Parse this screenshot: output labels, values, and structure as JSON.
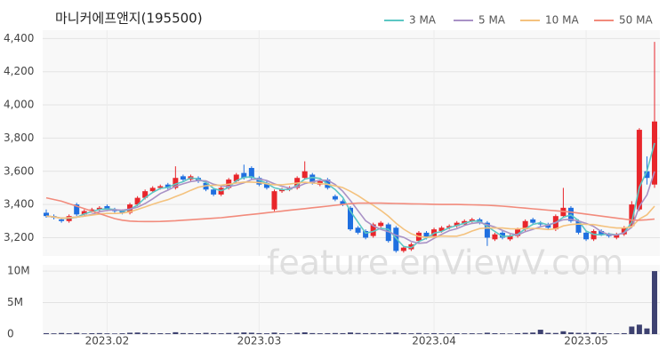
{
  "chart_data": {
    "type": "candlestick",
    "title": "마니커에프앤지(195500)",
    "watermark": "feature.enViewV.com",
    "categories": [
      null,
      null,
      null,
      null,
      null,
      null,
      null,
      null,
      "2023.02",
      null,
      null,
      null,
      null,
      null,
      null,
      null,
      null,
      null,
      null,
      null,
      null,
      null,
      null,
      null,
      null,
      null,
      null,
      null,
      "2023.03",
      null,
      null,
      null,
      null,
      null,
      null,
      null,
      null,
      null,
      null,
      null,
      null,
      null,
      null,
      null,
      null,
      null,
      null,
      null,
      null,
      null,
      null,
      "2023.04",
      null,
      null,
      null,
      null,
      null,
      null,
      null,
      null,
      null,
      null,
      null,
      null,
      null,
      null,
      null,
      null,
      null,
      null,
      null,
      "2023.05",
      null,
      null,
      null,
      null,
      null,
      null,
      null,
      null,
      null
    ],
    "open": [
      3350,
      3330,
      3310,
      3300,
      3400,
      3340,
      3360,
      3370,
      3390,
      3370,
      3360,
      3350,
      3400,
      3440,
      3480,
      3500,
      3520,
      3500,
      3570,
      3550,
      3560,
      3530,
      3490,
      3460,
      3500,
      3540,
      3590,
      3620,
      3560,
      3530,
      3370,
      3480,
      3490,
      3500,
      3560,
      3580,
      3520,
      3550,
      3450,
      3420,
      3380,
      3260,
      3240,
      3210,
      3270,
      3280,
      3260,
      3120,
      3130,
      3180,
      3230,
      3210,
      3240,
      3260,
      3270,
      3280,
      3300,
      3310,
      3290,
      3190,
      3230,
      3190,
      3210,
      3250,
      3310,
      3290,
      3280,
      3250,
      3330,
      3380,
      3300,
      3230,
      3190,
      3240,
      3220,
      3200,
      3220,
      3270,
      3370,
      3600,
      3520
    ],
    "high": [
      3370,
      3340,
      3320,
      3340,
      3410,
      3370,
      3380,
      3390,
      3400,
      3380,
      3370,
      3410,
      3450,
      3490,
      3510,
      3520,
      3530,
      3630,
      3580,
      3580,
      3570,
      3540,
      3500,
      3510,
      3560,
      3590,
      3640,
      3630,
      3570,
      3540,
      3490,
      3500,
      3510,
      3570,
      3660,
      3590,
      3550,
      3560,
      3460,
      3430,
      3390,
      3270,
      3250,
      3290,
      3300,
      3290,
      3270,
      3150,
      3170,
      3240,
      3240,
      3260,
      3270,
      3280,
      3300,
      3310,
      3320,
      3320,
      3300,
      3230,
      3240,
      3220,
      3260,
      3310,
      3320,
      3300,
      3290,
      3340,
      3500,
      3390,
      3310,
      3240,
      3250,
      3250,
      3230,
      3230,
      3270,
      3420,
      3860,
      3690,
      4380
    ],
    "low": [
      3320,
      3310,
      3290,
      3290,
      3330,
      3330,
      3350,
      3360,
      3360,
      3350,
      3340,
      3340,
      3390,
      3430,
      3470,
      3490,
      3490,
      3490,
      3540,
      3540,
      3530,
      3480,
      3450,
      3450,
      3490,
      3530,
      3550,
      3550,
      3510,
      3490,
      3360,
      3470,
      3480,
      3490,
      3550,
      3520,
      3510,
      3490,
      3420,
      3390,
      3240,
      3220,
      3190,
      3200,
      3260,
      3170,
      3110,
      3110,
      3120,
      3170,
      3190,
      3200,
      3230,
      3250,
      3260,
      3270,
      3290,
      3280,
      3150,
      3180,
      3190,
      3180,
      3200,
      3240,
      3280,
      3270,
      3250,
      3240,
      3320,
      3290,
      3220,
      3180,
      3180,
      3210,
      3200,
      3190,
      3210,
      3260,
      3360,
      3520,
      3500
    ],
    "close": [
      3330,
      3320,
      3300,
      3330,
      3340,
      3360,
      3370,
      3380,
      3370,
      3360,
      3350,
      3400,
      3440,
      3480,
      3500,
      3510,
      3500,
      3560,
      3550,
      3570,
      3540,
      3490,
      3460,
      3500,
      3550,
      3580,
      3560,
      3560,
      3520,
      3500,
      3480,
      3490,
      3500,
      3560,
      3600,
      3530,
      3540,
      3500,
      3430,
      3400,
      3250,
      3230,
      3200,
      3280,
      3290,
      3180,
      3120,
      3140,
      3160,
      3230,
      3200,
      3250,
      3260,
      3270,
      3290,
      3300,
      3310,
      3290,
      3200,
      3220,
      3200,
      3210,
      3250,
      3300,
      3290,
      3280,
      3260,
      3330,
      3380,
      3300,
      3230,
      3190,
      3240,
      3220,
      3210,
      3220,
      3260,
      3400,
      3850,
      3560,
      3900
    ],
    "up_color": "#e8262b",
    "down_color": "#1f6fe0",
    "ylim": [
      3090,
      4450
    ],
    "yticks": [
      {
        "value": 3200,
        "label": "3,200"
      },
      {
        "value": 3400,
        "label": "3,400"
      },
      {
        "value": 3600,
        "label": "3,600"
      },
      {
        "value": 3800,
        "label": "3,800"
      },
      {
        "value": 4000,
        "label": "4,000"
      },
      {
        "value": 4200,
        "label": "4,200"
      },
      {
        "value": 4400,
        "label": "4,400"
      }
    ],
    "grid": true,
    "legend": "top-right",
    "series": [
      {
        "name": "3 MA",
        "color": "#5cc7c4",
        "values": [
          3330,
          3325,
          3317,
          3317,
          3323,
          3343,
          3357,
          3370,
          3373,
          3370,
          3360,
          3370,
          3397,
          3440,
          3473,
          3497,
          3503,
          3523,
          3537,
          3560,
          3553,
          3533,
          3497,
          3483,
          3503,
          3543,
          3563,
          3567,
          3547,
          3527,
          3500,
          3490,
          3490,
          3517,
          3553,
          3563,
          3557,
          3523,
          3490,
          3443,
          3360,
          3293,
          3227,
          3237,
          3257,
          3250,
          3197,
          3147,
          3140,
          3177,
          3197,
          3227,
          3237,
          3260,
          3273,
          3287,
          3300,
          3300,
          3267,
          3237,
          3207,
          3210,
          3220,
          3253,
          3280,
          3290,
          3277,
          3290,
          3323,
          3337,
          3303,
          3240,
          3220,
          3217,
          3223,
          3217,
          3230,
          3293,
          3503,
          3603,
          3770
        ]
      },
      {
        "name": "5 MA",
        "color": "#a992c6",
        "values": [
          3330,
          3325,
          3317,
          3320,
          3324,
          3330,
          3340,
          3356,
          3364,
          3368,
          3366,
          3372,
          3384,
          3406,
          3434,
          3466,
          3486,
          3510,
          3524,
          3538,
          3544,
          3542,
          3522,
          3512,
          3508,
          3516,
          3530,
          3550,
          3554,
          3544,
          3524,
          3510,
          3498,
          3506,
          3526,
          3536,
          3546,
          3546,
          3520,
          3480,
          3424,
          3362,
          3302,
          3272,
          3250,
          3236,
          3214,
          3202,
          3178,
          3166,
          3170,
          3196,
          3220,
          3242,
          3254,
          3274,
          3286,
          3292,
          3278,
          3264,
          3244,
          3226,
          3216,
          3236,
          3250,
          3266,
          3276,
          3292,
          3308,
          3310,
          3300,
          3286,
          3268,
          3236,
          3218,
          3216,
          3230,
          3262,
          3388,
          3458,
          3598
        ]
      },
      {
        "name": "10 MA",
        "color": "#f4c27e",
        "values": [
          3330,
          3325,
          3317,
          3320,
          3324,
          3330,
          3336,
          3342,
          3346,
          3346,
          3348,
          3356,
          3370,
          3385,
          3401,
          3416,
          3429,
          3447,
          3465,
          3485,
          3504,
          3513,
          3515,
          3517,
          3522,
          3529,
          3535,
          3535,
          3532,
          3525,
          3519,
          3519,
          3523,
          3529,
          3534,
          3529,
          3527,
          3521,
          3512,
          3502,
          3479,
          3453,
          3423,
          3395,
          3364,
          3329,
          3287,
          3251,
          3224,
          3207,
          3202,
          3204,
          3210,
          3209,
          3209,
          3221,
          3240,
          3255,
          3259,
          3258,
          3258,
          3254,
          3253,
          3256,
          3256,
          3254,
          3249,
          3253,
          3271,
          3279,
          3282,
          3280,
          3279,
          3271,
          3264,
          3258,
          3258,
          3265,
          3312,
          3338,
          3390
        ]
      },
      {
        "name": "50 MA",
        "color": "#f28b7c",
        "values": [
          3440,
          3430,
          3420,
          3405,
          3390,
          3375,
          3360,
          3345,
          3330,
          3315,
          3305,
          3300,
          3298,
          3297,
          3297,
          3298,
          3300,
          3302,
          3305,
          3308,
          3311,
          3314,
          3317,
          3320,
          3325,
          3330,
          3335,
          3340,
          3345,
          3350,
          3355,
          3360,
          3365,
          3370,
          3375,
          3380,
          3385,
          3390,
          3395,
          3400,
          3405,
          3408,
          3408,
          3408,
          3408,
          3407,
          3406,
          3405,
          3404,
          3403,
          3402,
          3401,
          3400,
          3400,
          3400,
          3399,
          3398,
          3397,
          3395,
          3393,
          3390,
          3386,
          3382,
          3378,
          3374,
          3370,
          3366,
          3362,
          3358,
          3354,
          3348,
          3342,
          3336,
          3330,
          3324,
          3318,
          3312,
          3306,
          3305,
          3308,
          3312
        ]
      }
    ],
    "volume": {
      "color": "#3d4170",
      "values": [
        150000,
        120000,
        180000,
        130000,
        200000,
        110000,
        140000,
        160000,
        120000,
        100000,
        130000,
        220000,
        250000,
        180000,
        150000,
        140000,
        130000,
        300000,
        160000,
        150000,
        140000,
        200000,
        150000,
        130000,
        180000,
        200000,
        260000,
        220000,
        150000,
        130000,
        240000,
        140000,
        120000,
        200000,
        280000,
        160000,
        130000,
        150000,
        170000,
        150000,
        260000,
        180000,
        150000,
        160000,
        140000,
        200000,
        240000,
        150000,
        130000,
        170000,
        120000,
        150000,
        130000,
        110000,
        140000,
        120000,
        130000,
        110000,
        220000,
        140000,
        120000,
        100000,
        150000,
        200000,
        250000,
        700000,
        200000,
        180000,
        450000,
        260000,
        200000,
        180000,
        250000,
        150000,
        130000,
        120000,
        150000,
        1200000,
        1500000,
        900000,
        10000000
      ],
      "ylim": [
        0,
        11000000
      ],
      "yticks": [
        0,
        {
          "value": 5000000,
          "label": "5M"
        },
        {
          "value": 10000000,
          "label": "10M"
        }
      ]
    }
  }
}
